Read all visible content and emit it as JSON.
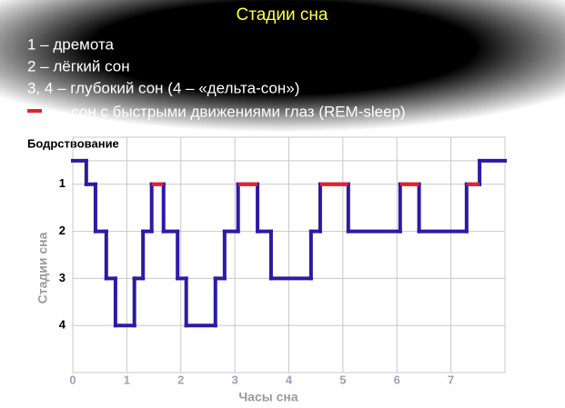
{
  "chart_data": {
    "type": "step",
    "title": "Стадии сна",
    "notes": [
      "1 – дремота",
      "2 – лёгкий сон",
      "3, 4 – глубокий сон (4 – «дельта-сон»)"
    ],
    "x_label": "Часы сна",
    "y_label": "Стадии сна",
    "xlim": [
      0,
      8
    ],
    "xticks": [
      0,
      1,
      2,
      3,
      4,
      5,
      6,
      7
    ],
    "ylim": [
      5,
      0
    ],
    "yticks": [
      {
        "value": 0.5,
        "label": "Бодрствование"
      },
      1,
      2,
      3,
      4
    ],
    "grid": true,
    "series": [
      {
        "color": "#2c1aa6",
        "x": [
          0,
          0.25,
          0.42,
          0.62,
          0.79,
          1.14,
          1.3,
          1.46,
          1.68,
          1.94,
          2.1,
          2.64,
          2.81,
          3.06,
          3.42,
          3.67,
          4.41,
          4.58,
          5.1,
          6.06,
          6.41,
          7.29,
          7.53
        ],
        "values": [
          0.5,
          1,
          2,
          3,
          4,
          3,
          2,
          1,
          2,
          3,
          4,
          3,
          2,
          1,
          2,
          3,
          2,
          1,
          2,
          1,
          2,
          1,
          0.5
        ]
      },
      {
        "name": "– сон с быстрыми движениями глаз (REM-sleep)",
        "color": "#e8202a",
        "x": [
          1.46,
          3.06,
          4.58,
          6.06,
          7.29
        ],
        "x_end": [
          1.68,
          3.42,
          5.1,
          6.41,
          7.53
        ],
        "values": [
          1,
          1,
          1,
          1,
          1
        ]
      }
    ]
  }
}
